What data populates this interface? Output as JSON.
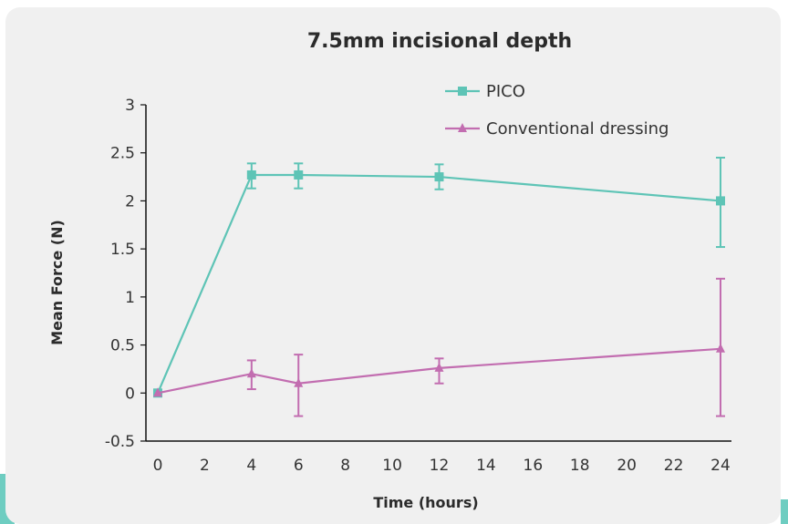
{
  "chart_data": {
    "type": "line",
    "title": "7.5mm incisional depth",
    "xlabel": "Time (hours)",
    "ylabel": "Mean Force (N)",
    "xlim": [
      0,
      24
    ],
    "ylim": [
      -0.5,
      3
    ],
    "xticks": [
      "0",
      "2",
      "4",
      "6",
      "8",
      "10",
      "12",
      "14",
      "16",
      "18",
      "20",
      "22",
      "24"
    ],
    "yticks": [
      "-0.5",
      "0",
      "0.5",
      "1",
      "1.5",
      "2",
      "2.5",
      "3"
    ],
    "legend_position": "top-right",
    "series": [
      {
        "name": "PICO",
        "marker": "square",
        "color": "#5ec4b6",
        "x": [
          0,
          4,
          6,
          12,
          24
        ],
        "y": [
          0.0,
          2.27,
          2.27,
          2.25,
          2.0
        ],
        "err_low": [
          0.0,
          0.14,
          0.14,
          0.13,
          0.48
        ],
        "err_high": [
          0.0,
          0.12,
          0.12,
          0.13,
          0.45
        ]
      },
      {
        "name": "Conventional dressing",
        "marker": "triangle",
        "color": "#c26db0",
        "x": [
          0,
          4,
          6,
          12,
          24
        ],
        "y": [
          0.0,
          0.2,
          0.1,
          0.26,
          0.46
        ],
        "err_low": [
          0.0,
          0.16,
          0.34,
          0.16,
          0.7
        ],
        "err_high": [
          0.0,
          0.14,
          0.3,
          0.1,
          0.73
        ]
      }
    ]
  }
}
